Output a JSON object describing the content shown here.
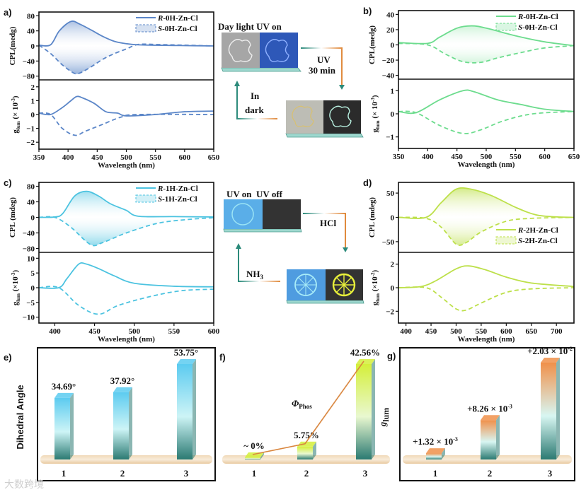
{
  "chart_data": [
    {
      "id": "a",
      "panel_label": "a)",
      "type": "line",
      "color": "#5b86c8",
      "xlabel": "Wavelength (nm)",
      "xlim": [
        350,
        650
      ],
      "xticks": [
        350,
        400,
        450,
        500,
        550,
        600,
        650
      ],
      "legend": [
        {
          "italic": "R",
          "rest": "-0H-Zn-Cl"
        },
        {
          "italic": "S",
          "rest": "-0H-Zn-Cl"
        }
      ],
      "legend_placement": "top-right",
      "cpl": {
        "ylabel": "CPL(medg)",
        "ylim": [
          -90,
          90
        ],
        "yticks": [
          -80,
          -40,
          0,
          40,
          80
        ],
        "R": [
          [
            350,
            2
          ],
          [
            370,
            3
          ],
          [
            385,
            40
          ],
          [
            405,
            65
          ],
          [
            420,
            58
          ],
          [
            440,
            42
          ],
          [
            460,
            25
          ],
          [
            480,
            12
          ],
          [
            500,
            6
          ],
          [
            520,
            3
          ],
          [
            550,
            2
          ],
          [
            600,
            1
          ],
          [
            650,
            0
          ]
        ],
        "S": [
          [
            350,
            2
          ],
          [
            370,
            -20
          ],
          [
            390,
            -50
          ],
          [
            410,
            -72
          ],
          [
            420,
            -72
          ],
          [
            440,
            -55
          ],
          [
            460,
            -35
          ],
          [
            480,
            -20
          ],
          [
            500,
            -8
          ],
          [
            520,
            4
          ],
          [
            550,
            4
          ],
          [
            600,
            2
          ],
          [
            650,
            0
          ]
        ]
      },
      "glum": {
        "ylabel": {
          "base": "g",
          "sub": "lum",
          "unit": " (× 10",
          "exp": "-3",
          "close": ")"
        },
        "ylim": [
          -2.5,
          2.5
        ],
        "yticks": [
          -2,
          -1,
          0,
          1,
          2
        ],
        "R": [
          [
            350,
            0.1
          ],
          [
            370,
            0
          ],
          [
            390,
            0.5
          ],
          [
            405,
            1.0
          ],
          [
            415,
            1.3
          ],
          [
            425,
            1.2
          ],
          [
            445,
            0.8
          ],
          [
            465,
            0.2
          ],
          [
            485,
            0.1
          ],
          [
            500,
            -0.1
          ],
          [
            550,
            0
          ],
          [
            600,
            0.2
          ],
          [
            650,
            0.25
          ]
        ],
        "S": [
          [
            350,
            0.1
          ],
          [
            370,
            0
          ],
          [
            390,
            -1
          ],
          [
            412,
            -1.5
          ],
          [
            430,
            -1.2
          ],
          [
            460,
            -0.7
          ],
          [
            490,
            -0.2
          ],
          [
            520,
            0
          ],
          [
            650,
            0
          ]
        ]
      }
    },
    {
      "id": "b",
      "panel_label": "b)",
      "type": "line",
      "color": "#6ddc8e",
      "xlabel": "Wavelength (nm)",
      "xlim": [
        350,
        650
      ],
      "xticks": [
        350,
        400,
        450,
        500,
        550,
        600,
        650
      ],
      "legend": [
        {
          "italic": "R",
          "rest": "-0H-Zn-Cl"
        },
        {
          "italic": "S",
          "rest": "-0H-Zn-Cl"
        }
      ],
      "legend_placement": "top-right",
      "cpl": {
        "ylabel": "CPL(medg)",
        "ylim": [
          -45,
          45
        ],
        "yticks": [
          -40,
          -20,
          0,
          20,
          40
        ],
        "R": [
          [
            350,
            3
          ],
          [
            400,
            2
          ],
          [
            420,
            10
          ],
          [
            450,
            22
          ],
          [
            475,
            25
          ],
          [
            500,
            22
          ],
          [
            550,
            12
          ],
          [
            600,
            4
          ],
          [
            650,
            -1
          ]
        ],
        "S": [
          [
            350,
            2
          ],
          [
            400,
            0
          ],
          [
            430,
            -12
          ],
          [
            460,
            -22
          ],
          [
            490,
            -23
          ],
          [
            520,
            -17
          ],
          [
            560,
            -10
          ],
          [
            600,
            -4
          ],
          [
            650,
            -1
          ]
        ]
      },
      "glum": {
        "ylabel": {
          "base": "g",
          "sub": "lum",
          "unit": " (× 10",
          "exp": "-3",
          "close": ")"
        },
        "ylim": [
          -1.5,
          1.5
        ],
        "yticks": [
          -1,
          0,
          1
        ],
        "R": [
          [
            350,
            0.1
          ],
          [
            380,
            0.05
          ],
          [
            420,
            0.6
          ],
          [
            460,
            1.0
          ],
          [
            480,
            0.95
          ],
          [
            520,
            0.6
          ],
          [
            560,
            0.4
          ],
          [
            600,
            0.2
          ],
          [
            650,
            0.1
          ]
        ],
        "S": [
          [
            350,
            0.1
          ],
          [
            380,
            0.05
          ],
          [
            420,
            -0.5
          ],
          [
            460,
            -0.85
          ],
          [
            490,
            -0.7
          ],
          [
            530,
            -0.3
          ],
          [
            580,
            0
          ],
          [
            650,
            0.1
          ]
        ]
      }
    },
    {
      "id": "c",
      "panel_label": "c)",
      "type": "line",
      "color": "#4cc3e0",
      "xlabel": "Wavelength (nm)",
      "xlim": [
        380,
        600
      ],
      "xticks": [
        400,
        450,
        500,
        550,
        600
      ],
      "legend": [
        {
          "italic": "R",
          "rest": "-1H-Zn-Cl"
        },
        {
          "italic": "S",
          "rest": "-1H-Zn-Cl"
        }
      ],
      "legend_placement": "top-right",
      "cpl": {
        "ylabel": "CPL (mdeg)",
        "ylim": [
          -90,
          90
        ],
        "yticks": [
          -80,
          -40,
          0,
          40,
          80
        ],
        "R": [
          [
            380,
            0
          ],
          [
            400,
            1
          ],
          [
            410,
            10
          ],
          [
            425,
            55
          ],
          [
            440,
            67
          ],
          [
            455,
            55
          ],
          [
            470,
            35
          ],
          [
            490,
            18
          ],
          [
            505,
            3
          ],
          [
            550,
            2
          ],
          [
            600,
            1
          ]
        ],
        "S": [
          [
            380,
            0
          ],
          [
            400,
            0
          ],
          [
            420,
            -25
          ],
          [
            445,
            -70
          ],
          [
            460,
            -65
          ],
          [
            490,
            -40
          ],
          [
            530,
            -15
          ],
          [
            570,
            -5
          ],
          [
            600,
            -1
          ]
        ]
      },
      "glum": {
        "ylabel": {
          "base": "g",
          "sub": "lum",
          "unit": " (×10",
          "exp": "-3",
          "close": ")"
        },
        "ylim": [
          -12,
          12
        ],
        "yticks": [
          -10,
          -5,
          0,
          5,
          10
        ],
        "R": [
          [
            380,
            0
          ],
          [
            405,
            0
          ],
          [
            415,
            3
          ],
          [
            430,
            8
          ],
          [
            440,
            8
          ],
          [
            455,
            6.5
          ],
          [
            475,
            4
          ],
          [
            500,
            1.5
          ],
          [
            550,
            0.5
          ],
          [
            600,
            0.3
          ]
        ],
        "S": [
          [
            380,
            0
          ],
          [
            405,
            0
          ],
          [
            430,
            -6
          ],
          [
            455,
            -9
          ],
          [
            480,
            -6
          ],
          [
            520,
            -3
          ],
          [
            560,
            -1
          ],
          [
            600,
            -0.5
          ]
        ]
      }
    },
    {
      "id": "d",
      "panel_label": "d)",
      "type": "line",
      "color": "#bde04a",
      "xlabel": "Wavelength (nm)",
      "xlim": [
        385,
        735
      ],
      "xticks": [
        400,
        450,
        500,
        550,
        600,
        650,
        700
      ],
      "legend": [
        {
          "italic": "R",
          "rest": "-2H-Zn-Cl"
        },
        {
          "italic": "S",
          "rest": "-2H-Zn-Cl"
        }
      ],
      "legend_placement": "bottom-right",
      "cpl": {
        "ylabel": "CPL (mdeg)",
        "ylim": [
          -72,
          72
        ],
        "yticks": [
          -50,
          0,
          50
        ],
        "R": [
          [
            385,
            0
          ],
          [
            440,
            0
          ],
          [
            470,
            30
          ],
          [
            500,
            58
          ],
          [
            530,
            58
          ],
          [
            570,
            45
          ],
          [
            620,
            20
          ],
          [
            660,
            5
          ],
          [
            700,
            1
          ],
          [
            735,
            0
          ]
        ],
        "S": [
          [
            385,
            0
          ],
          [
            440,
            -2
          ],
          [
            470,
            -20
          ],
          [
            500,
            -55
          ],
          [
            520,
            -52
          ],
          [
            550,
            -30
          ],
          [
            600,
            -8
          ],
          [
            650,
            -2
          ],
          [
            735,
            0
          ]
        ]
      },
      "glum": {
        "ylabel": {
          "base": "g",
          "sub": "lum",
          "unit": " (×10",
          "exp": "-2",
          "close": ")"
        },
        "ylim": [
          -3,
          3
        ],
        "yticks": [
          -2,
          0,
          2
        ],
        "R": [
          [
            385,
            0
          ],
          [
            430,
            0.1
          ],
          [
            460,
            0.6
          ],
          [
            500,
            1.6
          ],
          [
            525,
            1.85
          ],
          [
            560,
            1.5
          ],
          [
            600,
            0.9
          ],
          [
            650,
            0.4
          ],
          [
            735,
            0.1
          ]
        ],
        "S": [
          [
            385,
            0
          ],
          [
            440,
            0
          ],
          [
            470,
            -0.8
          ],
          [
            500,
            -1.8
          ],
          [
            520,
            -1.9
          ],
          [
            550,
            -1.3
          ],
          [
            600,
            -0.4
          ],
          [
            650,
            -0.1
          ],
          [
            735,
            0
          ]
        ]
      }
    },
    {
      "id": "e",
      "panel_label": "e)",
      "type": "bar",
      "ylabel": "Dihedral Angle",
      "categories": [
        "1",
        "2",
        "3"
      ],
      "values": [
        34.69,
        37.92,
        53.75
      ],
      "data_labels": [
        "34.69°",
        "37.92°",
        "53.75°"
      ],
      "colors": [
        "#5ccbf0",
        "#2b7a72"
      ]
    },
    {
      "id": "f",
      "panel_label": "f)",
      "type": "bar",
      "series_label": {
        "base": "Φ",
        "sub": "Phos"
      },
      "categories": [
        "1",
        "2",
        "3"
      ],
      "values": [
        0,
        5.75,
        42.56
      ],
      "data_labels": [
        "~ 0%",
        "5.75%",
        "42.56%"
      ],
      "colors": [
        "#d4ef3a",
        "#2b7a72"
      ],
      "line_color": "#d9863e"
    },
    {
      "id": "g",
      "panel_label": "g)",
      "type": "bar",
      "ylabel": {
        "base": "g",
        "sub": "lum"
      },
      "categories": [
        "1",
        "2",
        "3"
      ],
      "values": [
        0.00132,
        0.00826,
        0.0203
      ],
      "data_labels": [
        {
          "m": "+1.32 × 10",
          "e": "-3"
        },
        {
          "m": "+8.26 × 10",
          "e": "-3"
        },
        {
          "m": "+2.03 × 10",
          "e": "-2"
        }
      ],
      "colors": [
        "#f0904a",
        "#2b7a72"
      ]
    }
  ],
  "schematic": {
    "top": {
      "title": "Day light UV on",
      "step1": [
        "UV",
        "30 min"
      ],
      "step2": [
        "In",
        "dark"
      ]
    },
    "middle": {
      "title": "UV on  UV off",
      "step1": "HCl",
      "step2": {
        "base": "NH",
        "sub": "3"
      }
    }
  },
  "watermark": "大数跨境"
}
